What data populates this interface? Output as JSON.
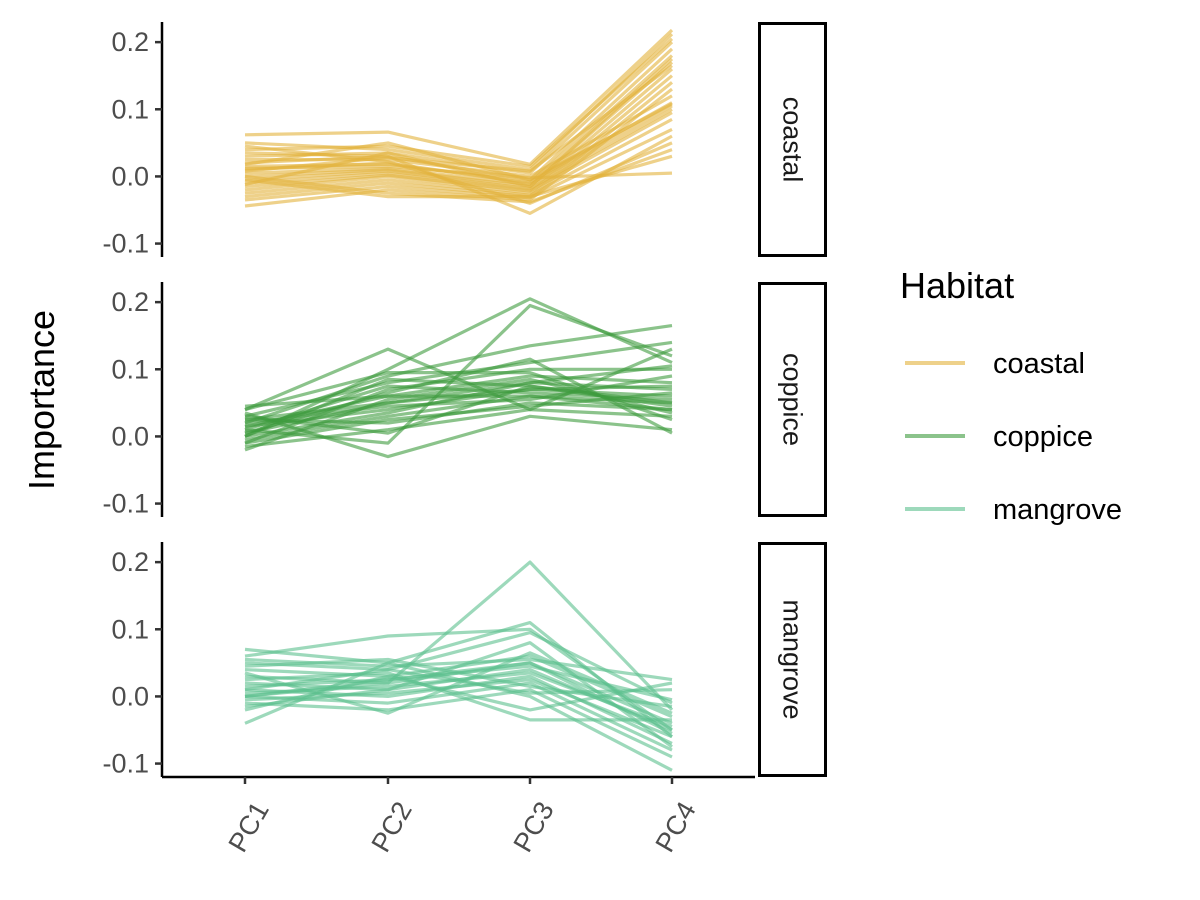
{
  "chart_data": {
    "type": "line",
    "ylabel": "Importance",
    "xlabel": "",
    "categories": [
      "PC1",
      "PC2",
      "PC3",
      "PC4"
    ],
    "ylim": [
      -0.12,
      0.23
    ],
    "yticks": [
      -0.1,
      0.0,
      0.1,
      0.2
    ],
    "ytick_labels": [
      "-0.1",
      "0.0",
      "0.1",
      "0.2"
    ],
    "legend": {
      "title": "Habitat",
      "placement": "right",
      "entries": [
        "coastal",
        "coppice",
        "mangrove"
      ]
    },
    "colors": {
      "coastal": "#E3B23C",
      "coppice": "#3E9B3E",
      "mangrove": "#5CC08E"
    },
    "facets": [
      {
        "name": "coastal",
        "lines": [
          [
            0.062,
            0.066,
            0.018,
            0.218
          ],
          [
            0.05,
            0.04,
            0.01,
            0.212
          ],
          [
            0.04,
            0.045,
            0.015,
            0.205
          ],
          [
            0.03,
            0.035,
            0.005,
            0.2
          ],
          [
            0.02,
            0.03,
            -0.005,
            0.19
          ],
          [
            0.01,
            0.02,
            -0.01,
            0.18
          ],
          [
            0.0,
            0.01,
            -0.015,
            0.17
          ],
          [
            -0.01,
            0.005,
            -0.02,
            0.16
          ],
          [
            -0.02,
            0.0,
            -0.025,
            0.15
          ],
          [
            -0.03,
            -0.01,
            -0.03,
            0.14
          ],
          [
            -0.044,
            -0.02,
            -0.035,
            0.13
          ],
          [
            0.025,
            0.025,
            0.0,
            0.12
          ],
          [
            0.015,
            0.018,
            -0.008,
            0.11
          ],
          [
            0.005,
            0.012,
            -0.012,
            0.105
          ],
          [
            -0.005,
            0.008,
            -0.018,
            0.1
          ],
          [
            -0.015,
            0.002,
            -0.022,
            0.095
          ],
          [
            -0.025,
            -0.005,
            -0.028,
            0.085
          ],
          [
            -0.035,
            -0.015,
            -0.032,
            0.07
          ],
          [
            0.035,
            0.03,
            -0.055,
            0.06
          ],
          [
            0.045,
            0.022,
            -0.04,
            0.05
          ],
          [
            0.0,
            -0.025,
            -0.038,
            0.04
          ],
          [
            -0.005,
            -0.03,
            -0.03,
            0.03
          ],
          [
            0.012,
            0.015,
            -0.002,
            0.005
          ],
          [
            0.008,
            0.028,
            0.008,
            0.165
          ],
          [
            -0.012,
            0.035,
            -0.015,
            0.175
          ],
          [
            0.018,
            0.05,
            -0.005,
            0.108
          ]
        ]
      },
      {
        "name": "coppice",
        "lines": [
          [
            0.04,
            0.13,
            0.04,
            0.13
          ],
          [
            0.0,
            0.1,
            0.205,
            0.11
          ],
          [
            0.01,
            -0.01,
            0.195,
            0.12
          ],
          [
            0.02,
            0.09,
            0.135,
            0.165
          ],
          [
            0.03,
            0.08,
            0.11,
            0.14
          ],
          [
            -0.01,
            0.07,
            0.1,
            0.1
          ],
          [
            0.045,
            0.06,
            0.09,
            0.08
          ],
          [
            0.005,
            0.05,
            0.08,
            0.07
          ],
          [
            0.015,
            0.04,
            0.07,
            0.06
          ],
          [
            -0.005,
            0.03,
            0.06,
            0.05
          ],
          [
            0.025,
            0.02,
            0.05,
            0.04
          ],
          [
            -0.015,
            0.01,
            0.04,
            0.03
          ],
          [
            0.035,
            -0.03,
            0.03,
            0.01
          ],
          [
            0.0,
            0.085,
            0.075,
            0.045
          ],
          [
            0.01,
            0.075,
            0.065,
            0.055
          ],
          [
            -0.02,
            0.055,
            0.085,
            0.035
          ],
          [
            0.04,
            0.095,
            0.095,
            0.025
          ],
          [
            0.02,
            0.045,
            0.055,
            0.09
          ],
          [
            0.005,
            0.065,
            0.115,
            0.005
          ],
          [
            -0.01,
            0.025,
            0.045,
            0.065
          ],
          [
            0.03,
            0.005,
            0.075,
            0.05
          ],
          [
            0.015,
            0.06,
            0.06,
            0.04
          ],
          [
            0.0,
            0.035,
            0.08,
            0.105
          ],
          [
            0.025,
            0.05,
            0.07,
            0.075
          ]
        ]
      },
      {
        "name": "mangrove",
        "lines": [
          [
            0.0,
            0.02,
            0.2,
            -0.02
          ],
          [
            0.07,
            0.05,
            0.11,
            -0.06
          ],
          [
            0.06,
            0.09,
            0.1,
            -0.05
          ],
          [
            0.05,
            0.04,
            0.095,
            -0.01
          ],
          [
            0.04,
            0.03,
            0.06,
            -0.03
          ],
          [
            0.03,
            0.02,
            0.05,
            -0.04
          ],
          [
            0.02,
            0.01,
            0.04,
            -0.05
          ],
          [
            0.01,
            0.0,
            0.03,
            -0.07
          ],
          [
            0.0,
            -0.01,
            0.02,
            -0.08
          ],
          [
            -0.01,
            -0.02,
            0.01,
            -0.09
          ],
          [
            -0.04,
            0.05,
            0.0,
            -0.11
          ],
          [
            -0.02,
            0.03,
            -0.02,
            0.02
          ],
          [
            0.055,
            0.045,
            0.055,
            0.025
          ],
          [
            0.015,
            0.025,
            0.045,
            -0.005
          ],
          [
            0.005,
            0.015,
            0.035,
            -0.045
          ],
          [
            -0.005,
            0.005,
            0.025,
            -0.06
          ],
          [
            0.025,
            0.035,
            -0.035,
            -0.035
          ],
          [
            0.035,
            -0.025,
            0.065,
            -0.025
          ],
          [
            0.045,
            0.055,
            0.015,
            -0.015
          ],
          [
            -0.015,
            0.01,
            0.08,
            -0.075
          ],
          [
            0.01,
            0.04,
            0.005,
            0.01
          ],
          [
            0.0,
            0.025,
            0.05,
            -0.055
          ]
        ]
      }
    ]
  }
}
